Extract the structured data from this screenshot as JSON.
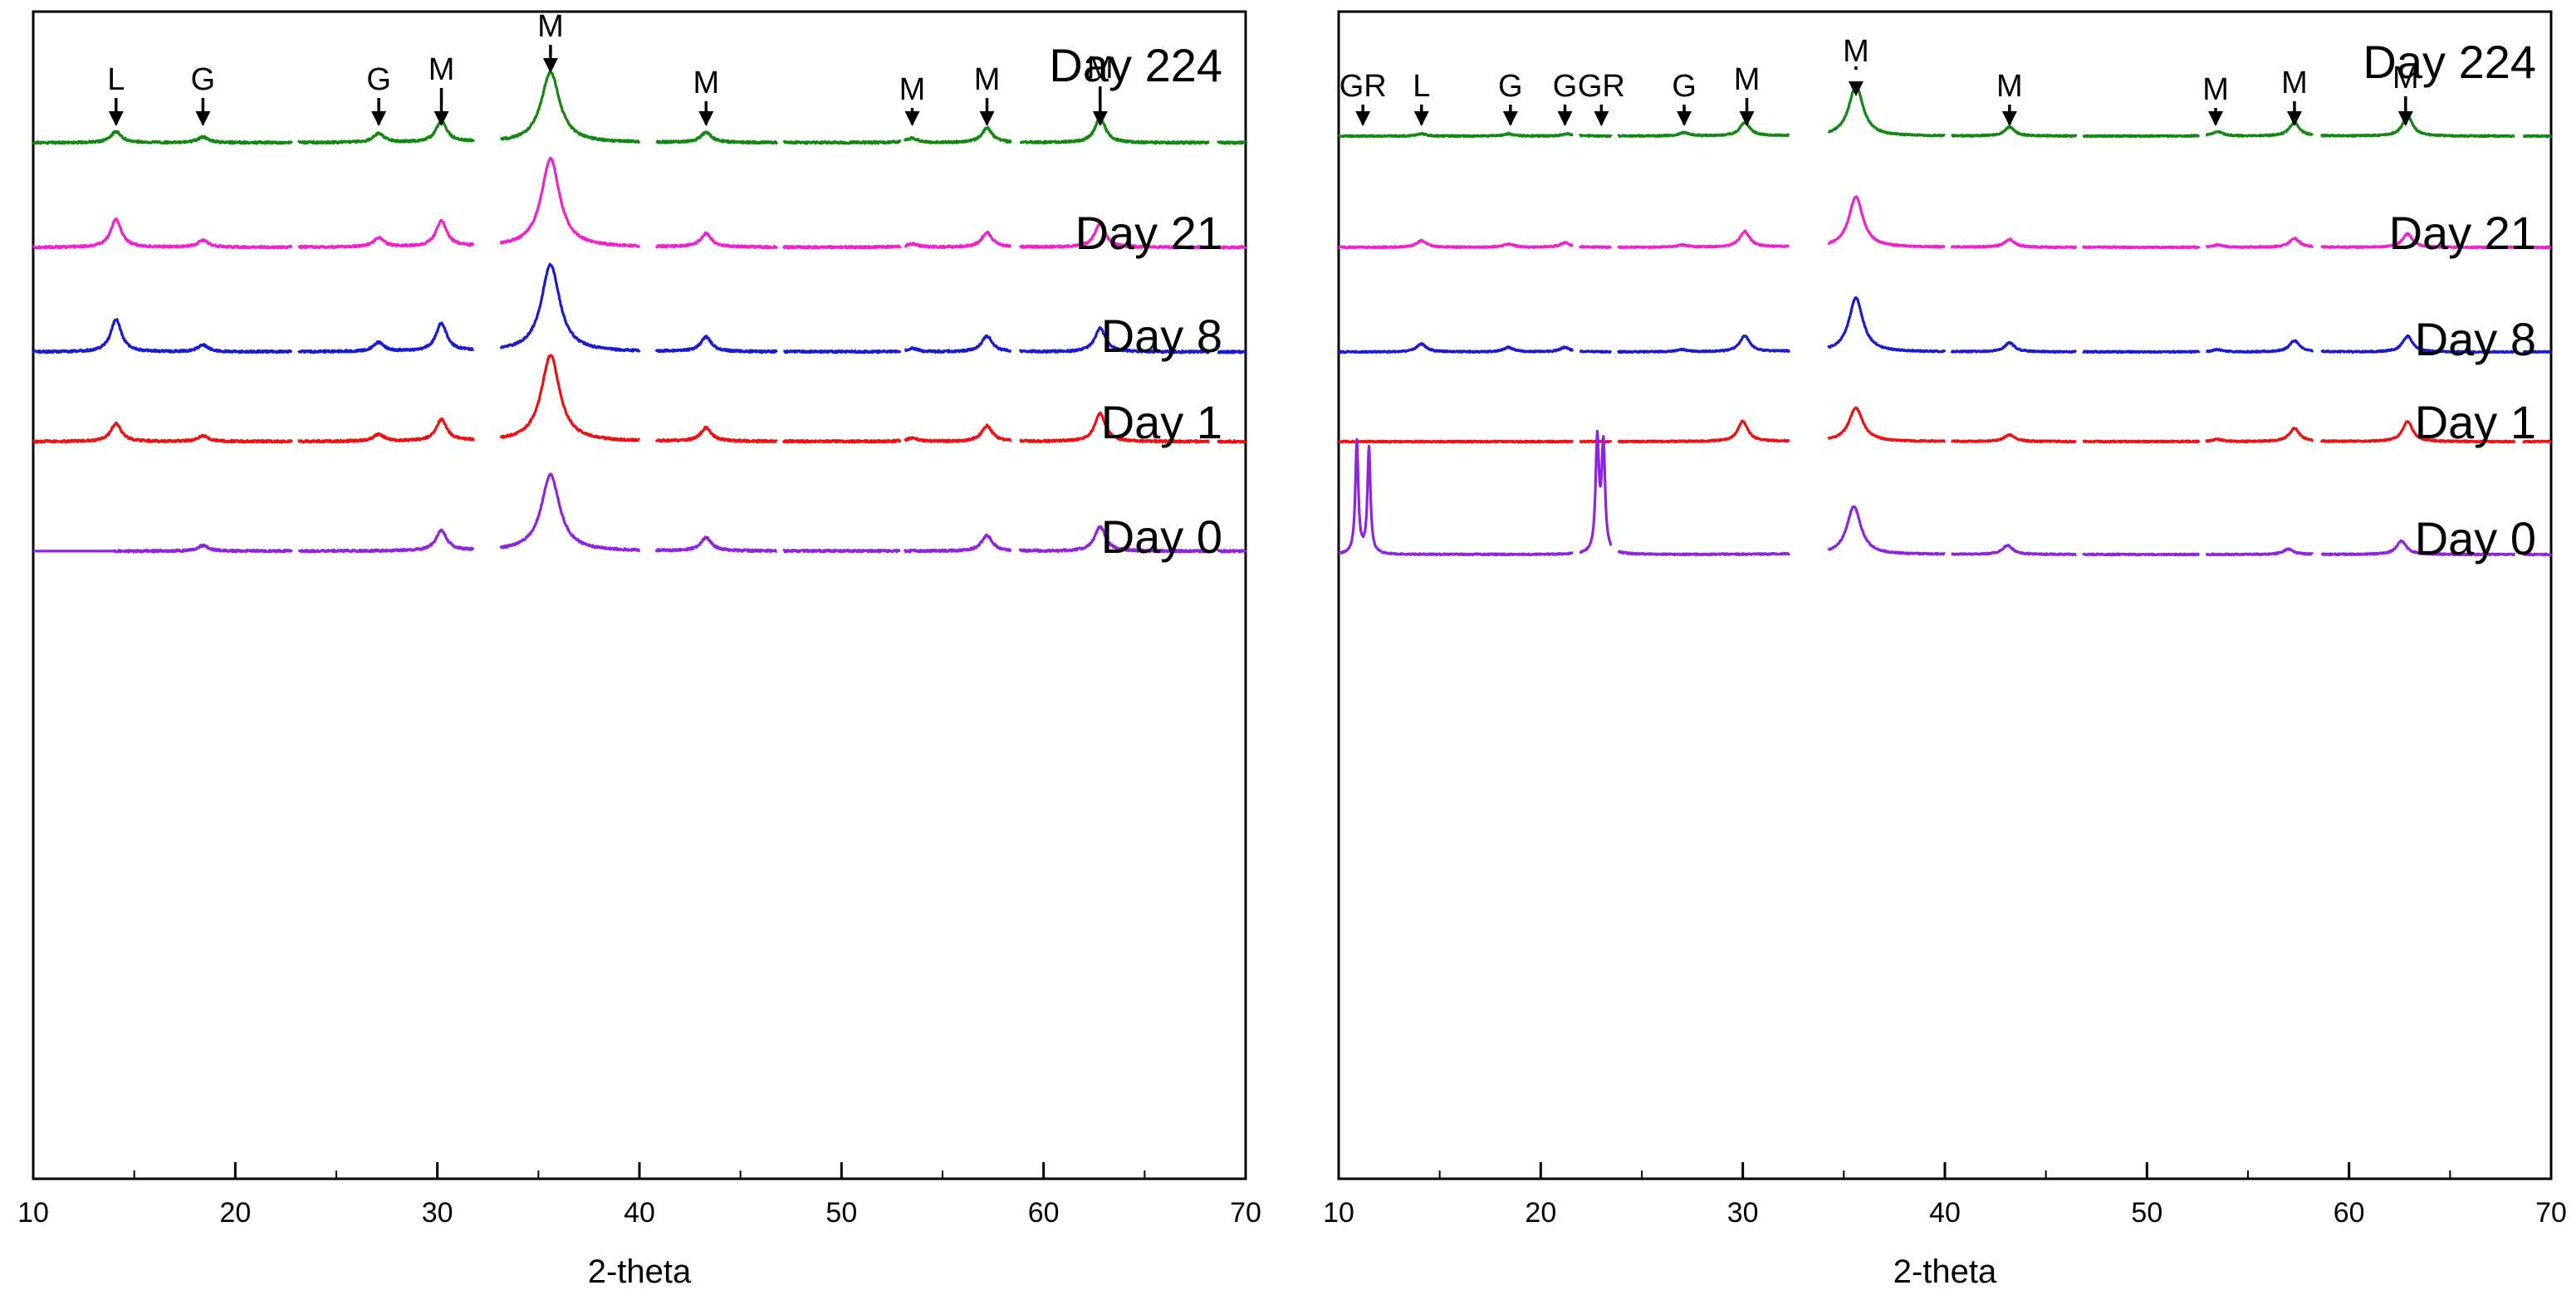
{
  "chart_data": [
    {
      "type": "line",
      "panel": "left",
      "xlabel": "2-theta",
      "ylabel": "",
      "xlim": [
        10,
        70
      ],
      "x_ticks": [
        10,
        20,
        30,
        40,
        50,
        60,
        70
      ],
      "y_axis_shown": false,
      "grid": false,
      "series": [
        {
          "name": "Day 224",
          "label": "Day 224",
          "color": "#118811",
          "peaks": [
            [
              14.1,
              1.0
            ],
            [
              18.4,
              0.5
            ],
            [
              27.1,
              0.8
            ],
            [
              30.2,
              1.9
            ],
            [
              35.6,
              6.3
            ],
            [
              43.3,
              0.9
            ],
            [
              53.5,
              0.4
            ],
            [
              57.2,
              1.3
            ],
            [
              62.8,
              2.2
            ]
          ],
          "annotations": [
            {
              "x": 14.1,
              "label": "L"
            },
            {
              "x": 18.4,
              "label": "G"
            },
            {
              "x": 27.1,
              "label": "G"
            },
            {
              "x": 30.2,
              "label": "M"
            },
            {
              "x": 35.6,
              "label": "M"
            },
            {
              "x": 43.3,
              "label": "M"
            },
            {
              "x": 53.5,
              "label": "M"
            },
            {
              "x": 57.2,
              "label": "M"
            },
            {
              "x": 62.8,
              "label": "M"
            }
          ]
        },
        {
          "name": "Day 21",
          "label": "Day 21",
          "color": "#ee22cc",
          "peaks": [
            [
              14.1,
              2.5
            ],
            [
              18.4,
              0.6
            ],
            [
              27.1,
              0.8
            ],
            [
              30.2,
              2.3
            ],
            [
              35.6,
              7.9
            ],
            [
              43.3,
              1.2
            ],
            [
              53.5,
              0.3
            ],
            [
              57.2,
              1.3
            ],
            [
              62.8,
              2.1
            ]
          ]
        },
        {
          "name": "Day 8",
          "label": "Day 8",
          "color": "#1a1ad0",
          "peaks": [
            [
              14.1,
              2.9
            ],
            [
              18.4,
              0.6
            ],
            [
              27.1,
              0.8
            ],
            [
              30.2,
              2.5
            ],
            [
              35.6,
              7.8
            ],
            [
              43.3,
              1.3
            ],
            [
              53.5,
              0.3
            ],
            [
              57.2,
              1.4
            ],
            [
              62.8,
              2.1
            ]
          ]
        },
        {
          "name": "Day 1",
          "label": "Day 1",
          "color": "#ee1111",
          "peaks": [
            [
              14.1,
              1.6
            ],
            [
              18.4,
              0.5
            ],
            [
              27.1,
              0.6
            ],
            [
              30.2,
              1.9
            ],
            [
              35.6,
              7.7
            ],
            [
              43.3,
              1.2
            ],
            [
              53.5,
              0.3
            ],
            [
              57.2,
              1.4
            ],
            [
              62.8,
              2.5
            ]
          ]
        },
        {
          "name": "Day 0",
          "label": "Day 0",
          "color": "#8e24e0",
          "peaks": [
            [
              18.4,
              0.5
            ],
            [
              30.2,
              1.8
            ],
            [
              35.6,
              6.8
            ],
            [
              43.3,
              1.2
            ],
            [
              57.2,
              1.4
            ],
            [
              62.8,
              2.2
            ]
          ]
        }
      ]
    },
    {
      "type": "line",
      "panel": "right",
      "xlabel": "2-theta",
      "ylabel": "",
      "xlim": [
        10,
        70
      ],
      "x_ticks": [
        10,
        20,
        30,
        40,
        50,
        60,
        70
      ],
      "y_axis_shown": false,
      "grid": false,
      "series": [
        {
          "name": "Day 224",
          "label": "Day 224",
          "color": "#118811",
          "peaks": [
            [
              14.1,
              0.2
            ],
            [
              18.4,
              0.2
            ],
            [
              21.3,
              0.2
            ],
            [
              27.1,
              0.3
            ],
            [
              30.1,
              1.2
            ],
            [
              35.6,
              4.5
            ],
            [
              43.2,
              0.8
            ],
            [
              53.5,
              0.4
            ],
            [
              57.3,
              1.2
            ],
            [
              62.9,
              1.8
            ]
          ],
          "annotations": [
            {
              "x": 11.2,
              "label": "GR"
            },
            {
              "x": 14.1,
              "label": "L"
            },
            {
              "x": 18.5,
              "label": "G"
            },
            {
              "x": 21.2,
              "label": "G"
            },
            {
              "x": 23.0,
              "label": "GR"
            },
            {
              "x": 27.1,
              "label": "G"
            },
            {
              "x": 30.2,
              "label": "M"
            },
            {
              "x": 35.6,
              "label": "M"
            },
            {
              "x": 43.2,
              "label": "M"
            },
            {
              "x": 53.4,
              "label": "M"
            },
            {
              "x": 57.3,
              "label": "M"
            },
            {
              "x": 62.8,
              "label": "M"
            }
          ]
        },
        {
          "name": "Day 21",
          "label": "Day 21",
          "color": "#ee22cc",
          "peaks": [
            [
              14.1,
              0.6
            ],
            [
              18.4,
              0.3
            ],
            [
              21.2,
              0.4
            ],
            [
              27.0,
              0.2
            ],
            [
              30.1,
              1.4
            ],
            [
              35.6,
              4.5
            ],
            [
              43.2,
              0.7
            ],
            [
              53.5,
              0.2
            ],
            [
              57.3,
              0.8
            ],
            [
              62.9,
              1.2
            ]
          ]
        },
        {
          "name": "Day 8",
          "label": "Day 8",
          "color": "#1a1ad0",
          "peaks": [
            [
              14.1,
              0.7
            ],
            [
              18.4,
              0.4
            ],
            [
              21.2,
              0.4
            ],
            [
              27.0,
              0.2
            ],
            [
              30.1,
              1.4
            ],
            [
              35.6,
              4.8
            ],
            [
              43.2,
              0.8
            ],
            [
              53.5,
              0.2
            ],
            [
              57.3,
              1.0
            ],
            [
              62.9,
              1.4
            ]
          ]
        },
        {
          "name": "Day 1",
          "label": "Day 1",
          "color": "#ee1111",
          "peaks": [
            [
              30.0,
              1.8
            ],
            [
              35.6,
              3.0
            ],
            [
              43.2,
              0.6
            ],
            [
              53.5,
              0.2
            ],
            [
              57.3,
              1.2
            ],
            [
              62.9,
              1.8
            ]
          ]
        },
        {
          "name": "Day 0",
          "label": "Day 0",
          "color": "#8e24e0",
          "peaks": [
            [
              10.9,
              10.0
            ],
            [
              11.5,
              9.4
            ],
            [
              22.8,
              10.0
            ],
            [
              23.1,
              9.6
            ],
            [
              35.5,
              4.3
            ],
            [
              43.1,
              0.8
            ],
            [
              57.0,
              0.5
            ],
            [
              62.6,
              1.2
            ]
          ]
        }
      ]
    }
  ]
}
